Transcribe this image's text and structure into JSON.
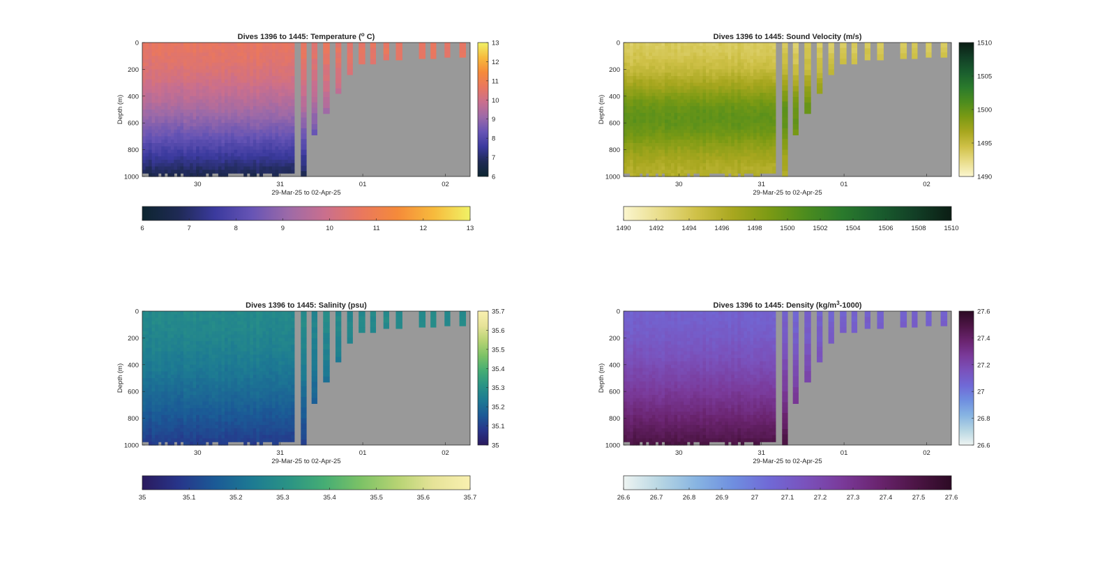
{
  "figure": {
    "xlabel": "29-Mar-25 to 02-Apr-25",
    "ylabel": "Depth (m)"
  },
  "chart_data": [
    {
      "type": "heatmap",
      "title": "Dives 1396 to 1445: Temperature (° C)",
      "title_parts": {
        "prefix": "Dives 1396 to 1445: Temperature (",
        "sup": "o",
        "suffix": " C)"
      },
      "variable": "Temperature",
      "unit": "° C",
      "xlabel": "29-Mar-25 to 02-Apr-25",
      "ylabel": "Depth (m)",
      "x_ticks": [
        "30",
        "31",
        "01",
        "02"
      ],
      "x_tick_days": [
        1,
        2,
        3,
        4
      ],
      "x_range_days": [
        0.33,
        4.3
      ],
      "y_ticks": [
        0,
        200,
        400,
        600,
        800,
        1000
      ],
      "ylim": [
        0,
        1000
      ],
      "y_reversed": true,
      "colorbar_ticks_right": [
        6,
        7,
        8,
        9,
        10,
        11,
        12,
        13
      ],
      "colorbar_ticks_bottom": [
        6,
        7,
        8,
        9,
        10,
        11,
        12,
        13
      ],
      "clim": [
        6,
        13
      ],
      "colormap": [
        "#0d2530",
        "#1f2a55",
        "#3b3a9e",
        "#6654b5",
        "#9c6aa8",
        "#c96f8e",
        "#e9775f",
        "#f58a3a",
        "#f7ba3c",
        "#f0f266"
      ],
      "surface_value": 10.6,
      "deep_value": 6.6,
      "background_color": "#999999"
    },
    {
      "type": "heatmap",
      "title": "Dives 1396 to 1445: Sound Velocity (m/s)",
      "title_parts": {
        "prefix": "Dives 1396 to 1445: Sound Velocity (m/s)",
        "sup": "",
        "suffix": ""
      },
      "variable": "Sound Velocity",
      "unit": "m/s",
      "xlabel": "29-Mar-25 to 02-Apr-25",
      "ylabel": "Depth (m)",
      "x_ticks": [
        "30",
        "31",
        "01",
        "02"
      ],
      "x_tick_days": [
        1,
        2,
        3,
        4
      ],
      "x_range_days": [
        0.33,
        4.3
      ],
      "y_ticks": [
        0,
        200,
        400,
        600,
        800,
        1000
      ],
      "ylim": [
        0,
        1000
      ],
      "y_reversed": true,
      "colorbar_ticks_right": [
        1490,
        1495,
        1500,
        1505,
        1510
      ],
      "colorbar_ticks_bottom": [
        1490,
        1492,
        1494,
        1496,
        1498,
        1500,
        1502,
        1504,
        1506,
        1508,
        1510
      ],
      "clim": [
        1490,
        1510
      ],
      "colormap": [
        "#fbf6cf",
        "#e9dd8a",
        "#cfc148",
        "#a8a71f",
        "#7b9a14",
        "#4c8c1e",
        "#2a7a2c",
        "#1a5e2e",
        "#123f26",
        "#0b1d14"
      ],
      "surface_value": 1493.5,
      "deep_value": 1495.5,
      "mid_value": 1499.0,
      "background_color": "#999999"
    },
    {
      "type": "heatmap",
      "title": "Dives 1396 to 1445: Salinity (psu)",
      "title_parts": {
        "prefix": "Dives 1396 to 1445: Salinity (psu)",
        "sup": "",
        "suffix": ""
      },
      "variable": "Salinity",
      "unit": "psu",
      "xlabel": "29-Mar-25 to 02-Apr-25",
      "ylabel": "Depth (m)",
      "x_ticks": [
        "30",
        "31",
        "01",
        "02"
      ],
      "x_tick_days": [
        1,
        2,
        3,
        4
      ],
      "x_range_days": [
        0.33,
        4.3
      ],
      "y_ticks": [
        0,
        200,
        400,
        600,
        800,
        1000
      ],
      "ylim": [
        0,
        1000
      ],
      "y_reversed": true,
      "colorbar_ticks_right": [
        35,
        35.1,
        35.2,
        35.3,
        35.4,
        35.5,
        35.6,
        35.7
      ],
      "colorbar_ticks_bottom": [
        35,
        35.1,
        35.2,
        35.3,
        35.4,
        35.5,
        35.6,
        35.7
      ],
      "clim": [
        35,
        35.7
      ],
      "colormap": [
        "#2a1a5e",
        "#27358a",
        "#1b5a96",
        "#1d7a93",
        "#2a9385",
        "#45ad74",
        "#7cc266",
        "#b6d373",
        "#e6e398",
        "#f9f0b0"
      ],
      "surface_value": 35.28,
      "deep_value": 35.09,
      "background_color": "#999999"
    },
    {
      "type": "heatmap",
      "title": "Dives 1396 to 1445: Density (kg/m³-1000)",
      "title_parts": {
        "prefix": "Dives 1396 to 1445: Density (kg/m",
        "sup": "3",
        "suffix": "-1000)"
      },
      "variable": "Density",
      "unit": "kg/m³-1000",
      "xlabel": "29-Mar-25 to 02-Apr-25",
      "ylabel": "Depth (m)",
      "x_ticks": [
        "30",
        "31",
        "01",
        "02"
      ],
      "x_tick_days": [
        1,
        2,
        3,
        4
      ],
      "x_range_days": [
        0.33,
        4.3
      ],
      "y_ticks": [
        0,
        200,
        400,
        600,
        800,
        1000
      ],
      "ylim": [
        0,
        1000
      ],
      "y_reversed": true,
      "colorbar_ticks_right": [
        26.6,
        26.8,
        27,
        27.2,
        27.4,
        27.6
      ],
      "colorbar_ticks_bottom": [
        26.6,
        26.7,
        26.8,
        26.9,
        27,
        27.1,
        27.2,
        27.3,
        27.4,
        27.5,
        27.6
      ],
      "clim": [
        26.6,
        27.6
      ],
      "colormap": [
        "#eef4f2",
        "#b7d6e3",
        "#87b4e2",
        "#6f8fe0",
        "#7069d6",
        "#7a52bc",
        "#7a3a9a",
        "#6a246f",
        "#4d1546",
        "#2c0a24"
      ],
      "surface_value": 27.08,
      "deep_value": 27.5,
      "background_color": "#999999"
    }
  ],
  "dives": {
    "full_profile_end_day": 2.17,
    "profile_ends": [
      [
        2.25,
        2.32,
        1000
      ],
      [
        2.38,
        2.45,
        690
      ],
      [
        2.52,
        2.6,
        530
      ],
      [
        2.67,
        2.74,
        380
      ],
      [
        2.81,
        2.88,
        240
      ],
      [
        2.95,
        3.03,
        160
      ],
      [
        3.09,
        3.16,
        160
      ],
      [
        3.25,
        3.32,
        130
      ],
      [
        3.4,
        3.48,
        130
      ],
      [
        3.68,
        3.76,
        120
      ],
      [
        3.82,
        3.89,
        120
      ],
      [
        3.99,
        4.06,
        110
      ],
      [
        4.17,
        4.25,
        110
      ]
    ]
  }
}
